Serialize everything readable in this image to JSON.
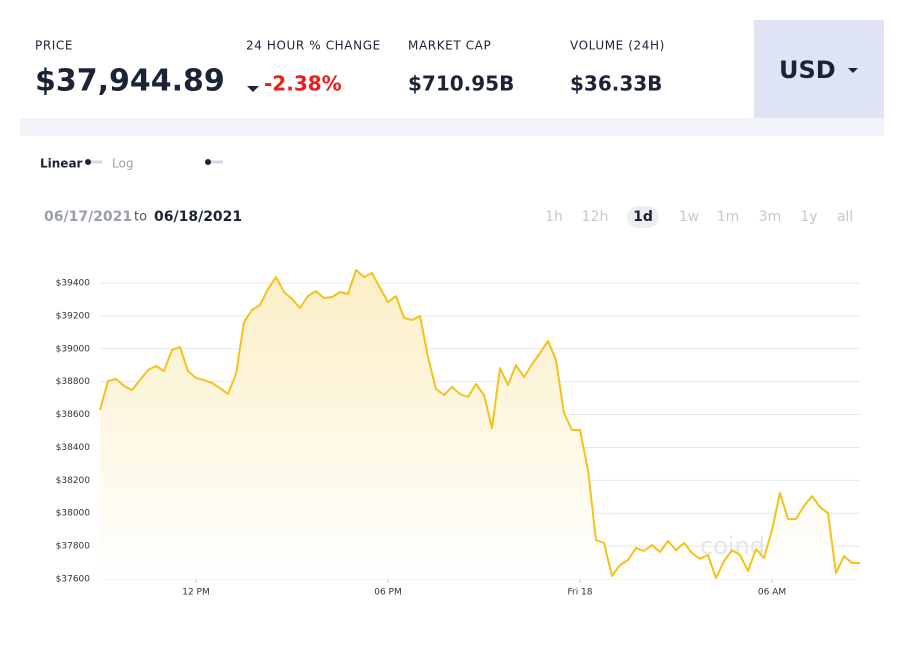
{
  "header": {
    "price_label": "PRICE",
    "price": "$37,944.89",
    "change_label": "24 HOUR % CHANGE",
    "change": "-2.38%",
    "market_cap_label": "MARKET CAP",
    "market_cap": "$710.95B",
    "volume_label": "VOLUME (24H)",
    "volume": "$36.33B",
    "currency": "USD"
  },
  "scale_toggle": {
    "linear": "Linear",
    "log": "Log"
  },
  "date_range": {
    "from": "06/17/2021",
    "to_label": "to",
    "to": "06/18/2021"
  },
  "timeframes": {
    "options": [
      "1h",
      "12h",
      "1d",
      "1w",
      "1m",
      "3m",
      "1y",
      "all"
    ],
    "selected": 2
  },
  "watermark": "coindesk",
  "chart_data": {
    "type": "line",
    "color": "#f5c21b",
    "grid": true,
    "x": [
      9,
      9.25,
      9.5,
      9.75,
      10,
      10.25,
      10.5,
      10.75,
      11,
      11.25,
      11.5,
      11.75,
      12,
      12.25,
      12.5,
      12.75,
      13,
      13.25,
      13.5,
      13.75,
      14,
      14.25,
      14.5,
      14.75,
      15,
      15.25,
      15.5,
      15.75,
      16,
      16.25,
      16.5,
      16.75,
      17,
      17.25,
      17.5,
      17.75,
      18,
      18.25,
      18.5,
      18.75,
      19,
      19.25,
      19.5,
      19.75,
      20,
      20.25,
      20.5,
      20.75,
      21,
      21.25,
      21.5,
      21.75,
      22,
      22.25,
      22.5,
      22.75,
      23,
      23.25,
      23.5,
      23.75,
      24,
      24.25,
      24.5,
      24.75,
      25,
      25.25,
      25.5,
      25.75,
      26,
      26.25,
      26.5,
      26.75,
      27,
      27.25,
      27.5,
      27.75,
      28,
      28.25,
      28.5,
      28.75,
      29,
      29.25,
      29.5,
      29.75,
      30,
      30.25,
      30.5,
      30.75,
      31,
      31.25,
      31.5,
      31.75,
      32,
      32.25,
      32.5,
      32.75
    ],
    "values": [
      38628,
      38804,
      38816,
      38774,
      38749,
      38810,
      38871,
      38895,
      38865,
      38993,
      39011,
      38865,
      38822,
      38810,
      38792,
      38761,
      38725,
      38847,
      39163,
      39236,
      39266,
      39363,
      39436,
      39345,
      39303,
      39248,
      39321,
      39351,
      39309,
      39315,
      39345,
      39333,
      39479,
      39436,
      39461,
      39370,
      39284,
      39321,
      39187,
      39175,
      39199,
      38950,
      38755,
      38719,
      38768,
      38725,
      38707,
      38786,
      38719,
      38518,
      38883,
      38780,
      38901,
      38828,
      38907,
      38974,
      39047,
      38932,
      38609,
      38506,
      38506,
      38263,
      37837,
      37819,
      37618,
      37685,
      37716,
      37789,
      37770,
      37807,
      37764,
      37831,
      37776,
      37819,
      37758,
      37722,
      37746,
      37606,
      37709,
      37776,
      37746,
      37649,
      37782,
      37728,
      37898,
      38123,
      37965,
      37965,
      38044,
      38105,
      38038,
      38001,
      37636,
      37740,
      37697,
      37697
    ],
    "xlim": [
      9,
      32.75
    ],
    "xticks": [
      {
        "value": 12,
        "label": "12 PM"
      },
      {
        "value": 18,
        "label": "06 PM"
      },
      {
        "value": 24,
        "label": "Fri 18"
      },
      {
        "value": 30,
        "label": "06 AM"
      }
    ],
    "ylim": [
      37600,
      39400
    ],
    "yticks": [
      {
        "value": 37600,
        "label": "$37600"
      },
      {
        "value": 37800,
        "label": "$37800"
      },
      {
        "value": 38000,
        "label": "$38000"
      },
      {
        "value": 38200,
        "label": "$38200"
      },
      {
        "value": 38400,
        "label": "$38400"
      },
      {
        "value": 38600,
        "label": "$38600"
      },
      {
        "value": 38800,
        "label": "$38800"
      },
      {
        "value": 39000,
        "label": "$39000"
      },
      {
        "value": 39200,
        "label": "$39200"
      },
      {
        "value": 39400,
        "label": "$39400"
      }
    ]
  }
}
